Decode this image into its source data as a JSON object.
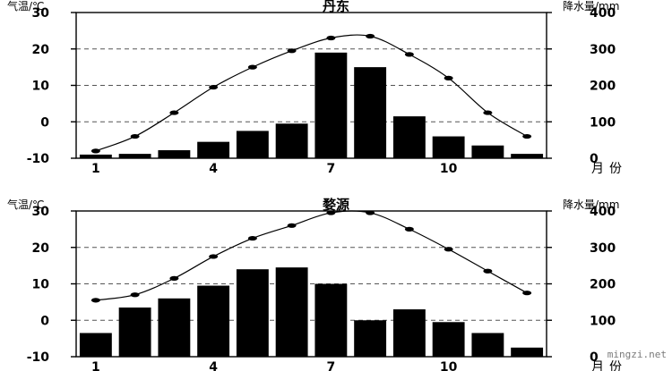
{
  "watermark": "mingzi.net",
  "chart_data": [
    {
      "type": "bar",
      "title": "丹东",
      "left_axis_label": "气温/℃",
      "right_axis_label": "降水量/mm",
      "x_axis_label": "月份",
      "months": [
        1,
        2,
        3,
        4,
        5,
        6,
        7,
        8,
        9,
        10,
        11,
        12
      ],
      "x_tick_labels": [
        {
          "month": 1,
          "label": "1"
        },
        {
          "month": 4,
          "label": "4"
        },
        {
          "month": 7,
          "label": "7"
        },
        {
          "month": 10,
          "label": "10"
        }
      ],
      "temp_ticks": [
        -10,
        0,
        10,
        20,
        30
      ],
      "precip_ticks": [
        0,
        100,
        200,
        300,
        400
      ],
      "temp_lim": [
        -10,
        30
      ],
      "precip_lim": [
        0,
        400
      ],
      "gridlines_temp": [
        0,
        10,
        20
      ],
      "series": [
        {
          "kind": "bar",
          "axis": "right",
          "values": [
            10,
            12,
            22,
            45,
            75,
            95,
            290,
            250,
            115,
            60,
            35,
            12
          ]
        },
        {
          "kind": "line",
          "axis": "left",
          "values": [
            -8,
            -4,
            2.5,
            9.5,
            15,
            19.5,
            23,
            23.5,
            18.5,
            12,
            2.5,
            -4
          ]
        }
      ]
    },
    {
      "type": "bar",
      "title": "婺源",
      "left_axis_label": "气温/℃",
      "right_axis_label": "降水量/mm",
      "x_axis_label": "月份",
      "months": [
        1,
        2,
        3,
        4,
        5,
        6,
        7,
        8,
        9,
        10,
        11,
        12
      ],
      "x_tick_labels": [
        {
          "month": 1,
          "label": "1"
        },
        {
          "month": 4,
          "label": "4"
        },
        {
          "month": 7,
          "label": "7"
        },
        {
          "month": 10,
          "label": "10"
        }
      ],
      "temp_ticks": [
        -10,
        0,
        10,
        20,
        30
      ],
      "precip_ticks": [
        0,
        100,
        200,
        300,
        400
      ],
      "temp_lim": [
        -10,
        30
      ],
      "precip_lim": [
        0,
        400
      ],
      "gridlines_temp": [
        0,
        10,
        20
      ],
      "series": [
        {
          "kind": "bar",
          "axis": "right",
          "values": [
            65,
            135,
            160,
            195,
            240,
            245,
            200,
            100,
            130,
            95,
            65,
            25
          ]
        },
        {
          "kind": "line",
          "axis": "left",
          "values": [
            5.5,
            7,
            11.5,
            17.5,
            22.5,
            26,
            29.5,
            29.5,
            25,
            19.5,
            13.5,
            7.5
          ]
        }
      ]
    }
  ]
}
